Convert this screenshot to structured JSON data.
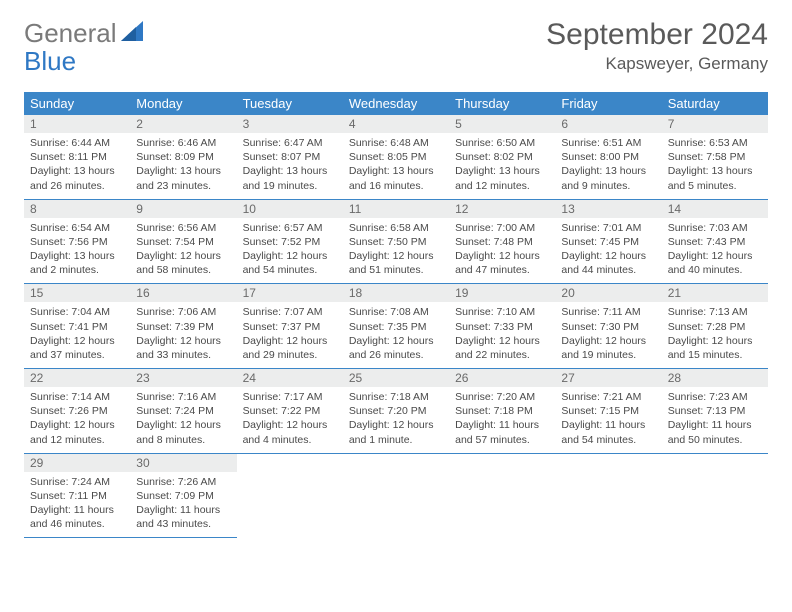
{
  "brand": {
    "part1": "General",
    "part2": "Blue"
  },
  "title": "September 2024",
  "location": "Kapsweyer, Germany",
  "colors": {
    "header_bg": "#3b86c8",
    "header_text": "#ffffff",
    "daynum_bg": "#eceded",
    "rule": "#3b86c8",
    "logo_gray": "#7a7a7a",
    "logo_blue": "#2f78c4"
  },
  "weekdays": [
    "Sunday",
    "Monday",
    "Tuesday",
    "Wednesday",
    "Thursday",
    "Friday",
    "Saturday"
  ],
  "weeks": [
    [
      {
        "n": "1",
        "sr": "Sunrise: 6:44 AM",
        "ss": "Sunset: 8:11 PM",
        "d1": "Daylight: 13 hours",
        "d2": "and 26 minutes."
      },
      {
        "n": "2",
        "sr": "Sunrise: 6:46 AM",
        "ss": "Sunset: 8:09 PM",
        "d1": "Daylight: 13 hours",
        "d2": "and 23 minutes."
      },
      {
        "n": "3",
        "sr": "Sunrise: 6:47 AM",
        "ss": "Sunset: 8:07 PM",
        "d1": "Daylight: 13 hours",
        "d2": "and 19 minutes."
      },
      {
        "n": "4",
        "sr": "Sunrise: 6:48 AM",
        "ss": "Sunset: 8:05 PM",
        "d1": "Daylight: 13 hours",
        "d2": "and 16 minutes."
      },
      {
        "n": "5",
        "sr": "Sunrise: 6:50 AM",
        "ss": "Sunset: 8:02 PM",
        "d1": "Daylight: 13 hours",
        "d2": "and 12 minutes."
      },
      {
        "n": "6",
        "sr": "Sunrise: 6:51 AM",
        "ss": "Sunset: 8:00 PM",
        "d1": "Daylight: 13 hours",
        "d2": "and 9 minutes."
      },
      {
        "n": "7",
        "sr": "Sunrise: 6:53 AM",
        "ss": "Sunset: 7:58 PM",
        "d1": "Daylight: 13 hours",
        "d2": "and 5 minutes."
      }
    ],
    [
      {
        "n": "8",
        "sr": "Sunrise: 6:54 AM",
        "ss": "Sunset: 7:56 PM",
        "d1": "Daylight: 13 hours",
        "d2": "and 2 minutes."
      },
      {
        "n": "9",
        "sr": "Sunrise: 6:56 AM",
        "ss": "Sunset: 7:54 PM",
        "d1": "Daylight: 12 hours",
        "d2": "and 58 minutes."
      },
      {
        "n": "10",
        "sr": "Sunrise: 6:57 AM",
        "ss": "Sunset: 7:52 PM",
        "d1": "Daylight: 12 hours",
        "d2": "and 54 minutes."
      },
      {
        "n": "11",
        "sr": "Sunrise: 6:58 AM",
        "ss": "Sunset: 7:50 PM",
        "d1": "Daylight: 12 hours",
        "d2": "and 51 minutes."
      },
      {
        "n": "12",
        "sr": "Sunrise: 7:00 AM",
        "ss": "Sunset: 7:48 PM",
        "d1": "Daylight: 12 hours",
        "d2": "and 47 minutes."
      },
      {
        "n": "13",
        "sr": "Sunrise: 7:01 AM",
        "ss": "Sunset: 7:45 PM",
        "d1": "Daylight: 12 hours",
        "d2": "and 44 minutes."
      },
      {
        "n": "14",
        "sr": "Sunrise: 7:03 AM",
        "ss": "Sunset: 7:43 PM",
        "d1": "Daylight: 12 hours",
        "d2": "and 40 minutes."
      }
    ],
    [
      {
        "n": "15",
        "sr": "Sunrise: 7:04 AM",
        "ss": "Sunset: 7:41 PM",
        "d1": "Daylight: 12 hours",
        "d2": "and 37 minutes."
      },
      {
        "n": "16",
        "sr": "Sunrise: 7:06 AM",
        "ss": "Sunset: 7:39 PM",
        "d1": "Daylight: 12 hours",
        "d2": "and 33 minutes."
      },
      {
        "n": "17",
        "sr": "Sunrise: 7:07 AM",
        "ss": "Sunset: 7:37 PM",
        "d1": "Daylight: 12 hours",
        "d2": "and 29 minutes."
      },
      {
        "n": "18",
        "sr": "Sunrise: 7:08 AM",
        "ss": "Sunset: 7:35 PM",
        "d1": "Daylight: 12 hours",
        "d2": "and 26 minutes."
      },
      {
        "n": "19",
        "sr": "Sunrise: 7:10 AM",
        "ss": "Sunset: 7:33 PM",
        "d1": "Daylight: 12 hours",
        "d2": "and 22 minutes."
      },
      {
        "n": "20",
        "sr": "Sunrise: 7:11 AM",
        "ss": "Sunset: 7:30 PM",
        "d1": "Daylight: 12 hours",
        "d2": "and 19 minutes."
      },
      {
        "n": "21",
        "sr": "Sunrise: 7:13 AM",
        "ss": "Sunset: 7:28 PM",
        "d1": "Daylight: 12 hours",
        "d2": "and 15 minutes."
      }
    ],
    [
      {
        "n": "22",
        "sr": "Sunrise: 7:14 AM",
        "ss": "Sunset: 7:26 PM",
        "d1": "Daylight: 12 hours",
        "d2": "and 12 minutes."
      },
      {
        "n": "23",
        "sr": "Sunrise: 7:16 AM",
        "ss": "Sunset: 7:24 PM",
        "d1": "Daylight: 12 hours",
        "d2": "and 8 minutes."
      },
      {
        "n": "24",
        "sr": "Sunrise: 7:17 AM",
        "ss": "Sunset: 7:22 PM",
        "d1": "Daylight: 12 hours",
        "d2": "and 4 minutes."
      },
      {
        "n": "25",
        "sr": "Sunrise: 7:18 AM",
        "ss": "Sunset: 7:20 PM",
        "d1": "Daylight: 12 hours",
        "d2": "and 1 minute."
      },
      {
        "n": "26",
        "sr": "Sunrise: 7:20 AM",
        "ss": "Sunset: 7:18 PM",
        "d1": "Daylight: 11 hours",
        "d2": "and 57 minutes."
      },
      {
        "n": "27",
        "sr": "Sunrise: 7:21 AM",
        "ss": "Sunset: 7:15 PM",
        "d1": "Daylight: 11 hours",
        "d2": "and 54 minutes."
      },
      {
        "n": "28",
        "sr": "Sunrise: 7:23 AM",
        "ss": "Sunset: 7:13 PM",
        "d1": "Daylight: 11 hours",
        "d2": "and 50 minutes."
      }
    ],
    [
      {
        "n": "29",
        "sr": "Sunrise: 7:24 AM",
        "ss": "Sunset: 7:11 PM",
        "d1": "Daylight: 11 hours",
        "d2": "and 46 minutes."
      },
      {
        "n": "30",
        "sr": "Sunrise: 7:26 AM",
        "ss": "Sunset: 7:09 PM",
        "d1": "Daylight: 11 hours",
        "d2": "and 43 minutes."
      },
      null,
      null,
      null,
      null,
      null
    ]
  ]
}
